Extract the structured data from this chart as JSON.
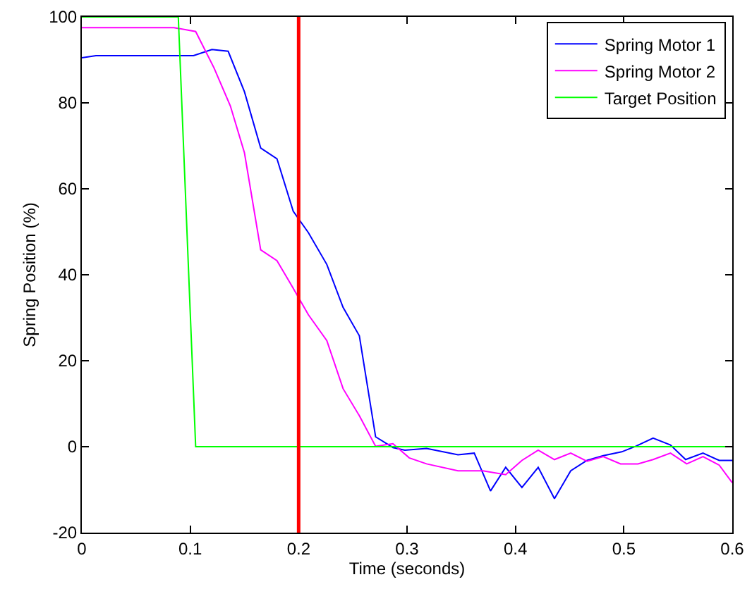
{
  "chart_data": {
    "type": "line",
    "xlabel": "Time (seconds)",
    "ylabel": "Spring Position (%)",
    "xlim": [
      0,
      0.6
    ],
    "xticks": [
      0,
      0.1,
      0.2,
      0.3,
      0.4,
      0.5,
      0.6
    ],
    "ylim": [
      -20,
      100
    ],
    "yticks": [
      -20,
      0,
      20,
      40,
      60,
      80,
      100
    ],
    "grid": false,
    "legend": "top right",
    "marker": "none",
    "line_style": "solid",
    "series": [
      {
        "name": "Spring Motor 1",
        "color": "#0000ff",
        "x": [
          0,
          0.013,
          0.103,
          0.12,
          0.135,
          0.15,
          0.165,
          0.18,
          0.195,
          0.209,
          0.226,
          0.241,
          0.256,
          0.271,
          0.287,
          0.298,
          0.318,
          0.347,
          0.362,
          0.377,
          0.391,
          0.406,
          0.421,
          0.436,
          0.451,
          0.466,
          0.481,
          0.498,
          0.511,
          0.527,
          0.543,
          0.557,
          0.573,
          0.588,
          0.6
        ],
        "values": [
          90.5,
          91,
          91,
          92.4,
          92,
          82.6,
          69.5,
          67,
          54.8,
          49.8,
          42.4,
          32.4,
          25.8,
          2.3,
          -0.2,
          -0.8,
          -0.4,
          -1.9,
          -1.5,
          -10.3,
          -4.8,
          -9.5,
          -4.8,
          -12.1,
          -5.6,
          -3.2,
          -2.1,
          -1.2,
          0.1,
          2,
          0.4,
          -3,
          -1.5,
          -3.2,
          -3.2
        ]
      },
      {
        "name": "Spring Motor 2",
        "color": "#ff00ff",
        "x": [
          0,
          0.085,
          0.105,
          0.122,
          0.137,
          0.15,
          0.165,
          0.18,
          0.194,
          0.209,
          0.226,
          0.241,
          0.256,
          0.271,
          0.287,
          0.302,
          0.318,
          0.347,
          0.37,
          0.391,
          0.406,
          0.421,
          0.436,
          0.451,
          0.466,
          0.481,
          0.497,
          0.513,
          0.527,
          0.543,
          0.558,
          0.573,
          0.588,
          0.6
        ],
        "values": [
          97.5,
          97.5,
          96.6,
          88.1,
          79.3,
          68.4,
          45.8,
          43.3,
          37.3,
          30.7,
          24.7,
          13.5,
          7.2,
          0.1,
          0.7,
          -2.6,
          -4,
          -5.6,
          -5.6,
          -6.5,
          -3.2,
          -0.8,
          -3,
          -1.5,
          -3.4,
          -2.3,
          -4,
          -4,
          -3,
          -1.5,
          -4,
          -2.3,
          -4.3,
          -8.4
        ]
      },
      {
        "name": "Target Position",
        "color": "#00ff00",
        "x": [
          0,
          0.089,
          0.105,
          0.6
        ],
        "values": [
          100,
          100,
          0,
          0
        ]
      }
    ],
    "ref_lines": [
      {
        "axis": "x",
        "value": 0.2,
        "color": "#ff0000",
        "line_style": "solid"
      }
    ]
  }
}
